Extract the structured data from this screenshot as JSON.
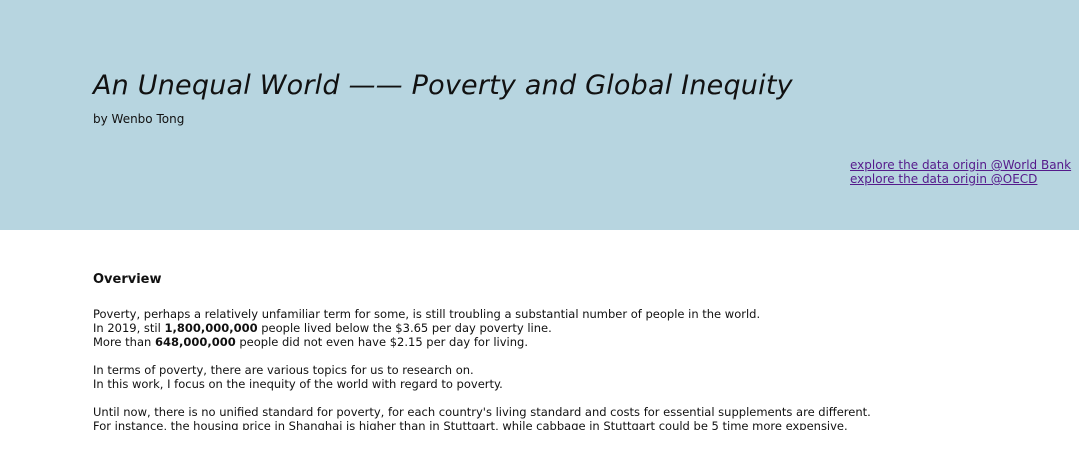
{
  "header": {
    "title": "An Unequal World —— Poverty and Global Inequity",
    "byline": "by Wenbo Tong",
    "links": [
      "explore the data origin @World Bank",
      "explore the data origin @OECD"
    ]
  },
  "overview": {
    "heading": "Overview",
    "paragraphs": [
      [
        [
          {
            "text": "Poverty, perhaps a relatively unfamiliar term for some, is still troubling a substantial number of people in the world."
          }
        ],
        [
          {
            "text": "In 2019, stil "
          },
          {
            "text": "1,800,000,000",
            "bold": true
          },
          {
            "text": " people lived below the $3.65 per day poverty line."
          }
        ],
        [
          {
            "text": "More than "
          },
          {
            "text": "648,000,000",
            "bold": true
          },
          {
            "text": " people did not even have $2.15 per day for living."
          }
        ]
      ],
      [
        [
          {
            "text": "In terms of poverty, there are various topics for us to research on."
          }
        ],
        [
          {
            "text": "In this work, I focus on the inequity of the world with regard to poverty."
          }
        ]
      ],
      [
        [
          {
            "text": "Until now, there is no unified standard for poverty, for each country's living standard and costs for essential supplements are different."
          }
        ],
        [
          {
            "text": "For instance, the housing price in Shanghai is higher than in Stuttgart, while cabbage in Stuttgart could be 5 time more expensive."
          }
        ]
      ]
    ]
  }
}
